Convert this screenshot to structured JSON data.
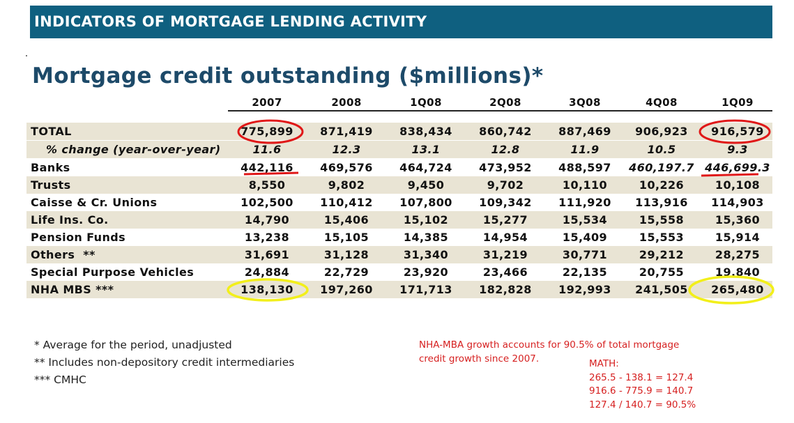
{
  "banner": "INDICATORS OF MORTGAGE LENDING ACTIVITY",
  "title": "Mortgage credit outstanding ($millions)*",
  "columns": [
    "2007",
    "2008",
    "1Q08",
    "2Q08",
    "3Q08",
    "4Q08",
    "1Q09"
  ],
  "rows": [
    {
      "label": "TOTAL",
      "values": [
        "775,899",
        "871,419",
        "838,434",
        "860,742",
        "887,469",
        "906,923",
        "916,579"
      ]
    },
    {
      "label": "% change (year-over-year)",
      "values": [
        "11.6",
        "12.3",
        "13.1",
        "12.8",
        "11.9",
        "10.5",
        "9.3"
      ]
    },
    {
      "label": "Banks",
      "values": [
        "442,116",
        "469,576",
        "464,724",
        "473,952",
        "488,597",
        "460,197.7",
        "446,699.3"
      ]
    },
    {
      "label": "Trusts",
      "values": [
        "8,550",
        "9,802",
        "9,450",
        "9,702",
        "10,110",
        "10,226",
        "10,108"
      ]
    },
    {
      "label": "Caisse & Cr. Unions",
      "values": [
        "102,500",
        "110,412",
        "107,800",
        "109,342",
        "111,920",
        "113,916",
        "114,903"
      ]
    },
    {
      "label": "Life Ins. Co.",
      "values": [
        "14,790",
        "15,406",
        "15,102",
        "15,277",
        "15,534",
        "15,558",
        "15,360"
      ]
    },
    {
      "label": "Pension Funds",
      "values": [
        "13,238",
        "15,105",
        "14,385",
        "14,954",
        "15,409",
        "15,553",
        "15,914"
      ]
    },
    {
      "label": "Others  **",
      "values": [
        "31,691",
        "31,128",
        "31,340",
        "31,219",
        "30,771",
        "29,212",
        "28,275"
      ]
    },
    {
      "label": "Special Purpose Vehicles",
      "values": [
        "24,884",
        "22,729",
        "23,920",
        "23,466",
        "22,135",
        "20,755",
        "19,840"
      ]
    },
    {
      "label": "NHA MBS ***",
      "values": [
        "138,130",
        "197,260",
        "171,713",
        "182,828",
        "192,993",
        "241,505",
        "265,480"
      ]
    }
  ],
  "footnotes": [
    "* Average for the period, unadjusted",
    "** Includes non-depository credit intermediaries",
    "*** CMHC"
  ],
  "annotation": {
    "note_line1": "NHA-MBA growth accounts for 90.5% of total mortgage",
    "note_line2": "credit growth since 2007.",
    "math_title": "MATH:",
    "math_lines": [
      "265.5 - 138.1 = 127.4",
      "916.6 - 775.9 = 140.7",
      "127.4 / 140.7 = 90.5%"
    ]
  },
  "colors": {
    "banner_bg": "#0f6080",
    "title": "#1d4a69",
    "row_shade": "#e9e4d4",
    "red_markup": "#e01818",
    "yellow_markup": "#f2ef1a"
  }
}
